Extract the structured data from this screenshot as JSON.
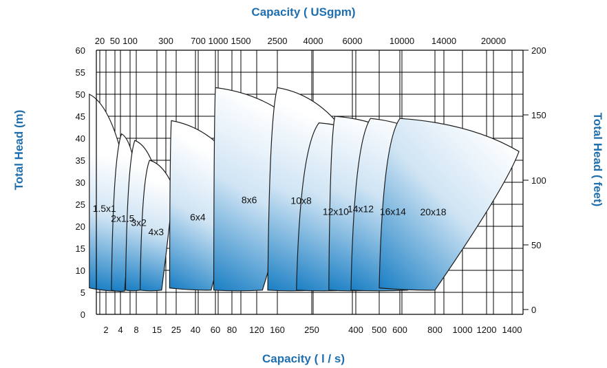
{
  "chart_data": {
    "type": "area",
    "title": "Capacity ( USgpm)",
    "xlabel": "Capacity ( l / s)",
    "ylabel": "Total Head (m)",
    "y2label": "Total Head ( feet)",
    "x_scale": "log",
    "x_ticks": [
      "2",
      "4",
      "8",
      "15",
      "25",
      "40",
      "60",
      "80",
      "120",
      "160",
      "250",
      "400",
      "500",
      "600",
      "800",
      "1000",
      "1200",
      "1400"
    ],
    "x2_ticks": [
      "20",
      "50",
      "100",
      "300",
      "700",
      "1000",
      "1500",
      "2500",
      "4000",
      "6000",
      "10000",
      "14000",
      "20000"
    ],
    "y_ticks": [
      "0",
      "5",
      "10",
      "15",
      "20",
      "25",
      "30",
      "35",
      "40",
      "45",
      "50",
      "55",
      "60"
    ],
    "y2_ticks": [
      "0",
      "50",
      "100",
      "150",
      "200"
    ],
    "ylim": [
      0,
      60
    ],
    "y2lim": [
      0,
      200
    ],
    "grid": true,
    "series": [
      {
        "name": "1.5x1",
        "color": "#1b7fc4",
        "points": [
          [
            0.9,
            50
          ],
          [
            4.5,
            35
          ],
          [
            3.2,
            5.3
          ],
          [
            0.9,
            6
          ]
        ]
      },
      {
        "name": "2x1.5",
        "color": "#1b7fc4",
        "points": [
          [
            4.2,
            41
          ],
          [
            7.0,
            35.5
          ],
          [
            4.8,
            5.3
          ],
          [
            2.6,
            5.5
          ]
        ]
      },
      {
        "name": "3x2",
        "color": "#1b7fc4",
        "points": [
          [
            7.5,
            39.5
          ],
          [
            14,
            33
          ],
          [
            9,
            5.5
          ],
          [
            5,
            5.5
          ]
        ]
      },
      {
        "name": "4x3",
        "color": "#1b7fc4",
        "points": [
          [
            12,
            35
          ],
          [
            23,
            29
          ],
          [
            17,
            5.5
          ],
          [
            9,
            5.5
          ]
        ]
      },
      {
        "name": "6x4",
        "color": "#1b7fc4",
        "points": [
          [
            22,
            44
          ],
          [
            90,
            33
          ],
          [
            55,
            5.5
          ],
          [
            21,
            6
          ]
        ]
      },
      {
        "name": "8x6",
        "color": "#1b7fc4",
        "points": [
          [
            60,
            51.5
          ],
          [
            230,
            41.5
          ],
          [
            130,
            5.5
          ],
          [
            58,
            5.5
          ]
        ]
      },
      {
        "name": "10x8",
        "color": "#1b7fc4",
        "points": [
          [
            160,
            51.5
          ],
          [
            360,
            41
          ],
          [
            255,
            5.5
          ],
          [
            140,
            5.5
          ]
        ]
      },
      {
        "name": "12x10",
        "color": "#1b7fc4",
        "points": [
          [
            270,
            43.5
          ],
          [
            500,
            39
          ],
          [
            370,
            5.5
          ],
          [
            205,
            5.5
          ]
        ]
      },
      {
        "name": "14x12",
        "color": "#1b7fc4",
        "points": [
          [
            320,
            45
          ],
          [
            620,
            40
          ],
          [
            480,
            5.5
          ],
          [
            300,
            5.5
          ]
        ]
      },
      {
        "name": "16x14",
        "color": "#1b7fc4",
        "points": [
          [
            460,
            44.5
          ],
          [
            850,
            38
          ],
          [
            640,
            5.5
          ],
          [
            380,
            5.5
          ]
        ]
      },
      {
        "name": "20x18",
        "color": "#1b7fc4",
        "points": [
          [
            600,
            44.5
          ],
          [
            1460,
            37
          ],
          [
            800,
            5.5
          ],
          [
            500,
            6
          ]
        ]
      }
    ]
  }
}
